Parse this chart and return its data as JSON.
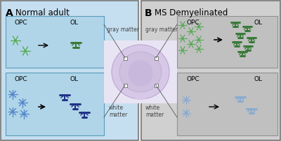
{
  "fig_width": 4.0,
  "fig_height": 2.02,
  "dpi": 100,
  "panel_A_bg": "#c5dff0",
  "panel_B_bg": "#d0d0d0",
  "panel_A_title": "Normal adult",
  "panel_B_title": "MS Demyelinated",
  "label_A": "A",
  "label_B": "B",
  "opc_label": "OPC",
  "ol_label": "OL",
  "gray_matter_label": "gray matter",
  "white_matter_label": "white\nmatter",
  "inner_A_color": "#b0d5e8",
  "inner_A_edge": "#5a9abc",
  "inner_B_color": "#c0c0c0",
  "inner_B_edge": "#909090",
  "green_dark": "#3a7a3a",
  "green_light": "#5aaa5a",
  "blue_dark": "#223388",
  "blue_mid": "#3355aa",
  "blue_light": "#5588cc",
  "blue_very_light": "#88aad0"
}
